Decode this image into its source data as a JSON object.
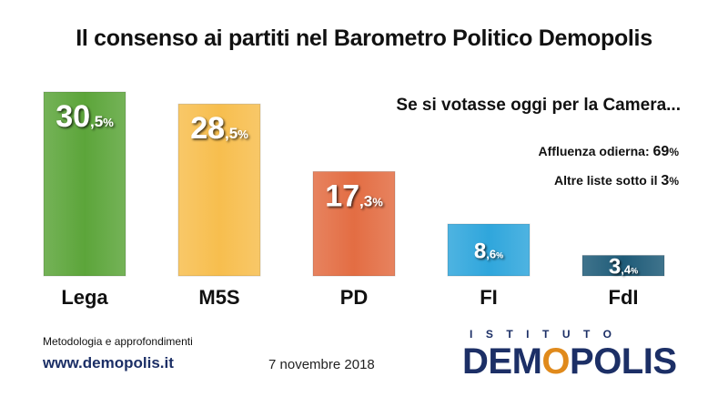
{
  "chart_data": {
    "type": "bar",
    "title": "Il consenso ai partiti nel Barometro Politico Demopolis",
    "subtitle": "Se si votasse oggi per la Camera...",
    "categories": [
      "Lega",
      "M5S",
      "PD",
      "FI",
      "FdI"
    ],
    "values": [
      30.5,
      28.5,
      17.3,
      8.6,
      3.4
    ],
    "value_labels": [
      {
        "int": "30",
        "dec": ",5",
        "unit": "%"
      },
      {
        "int": "28",
        "dec": ",5",
        "unit": "%"
      },
      {
        "int": "17",
        "dec": ",3",
        "unit": "%"
      },
      {
        "int": "8",
        "dec": ",6",
        "unit": "%"
      },
      {
        "int": "3",
        "dec": ",4",
        "unit": "%"
      }
    ],
    "colors": [
      "#5ca53a",
      "#f7be4e",
      "#e36d43",
      "#2fa6dc",
      "#1e5b78"
    ],
    "ylim": [
      0,
      30.5
    ]
  },
  "notes": {
    "affluenza_label": "Affluenza odierna: ",
    "affluenza_value": "69",
    "affluenza_unit": "%",
    "altre_label": "Altre liste sotto il ",
    "altre_value": "3",
    "altre_unit": "%"
  },
  "footer": {
    "method": "Metodologia e approfondimenti",
    "site": "www.demopolis.it",
    "date": "7 novembre 2018"
  },
  "logo": {
    "top": "ISTITUTO",
    "main_a": "DEM",
    "main_o": "O",
    "main_b": "POLIS"
  }
}
